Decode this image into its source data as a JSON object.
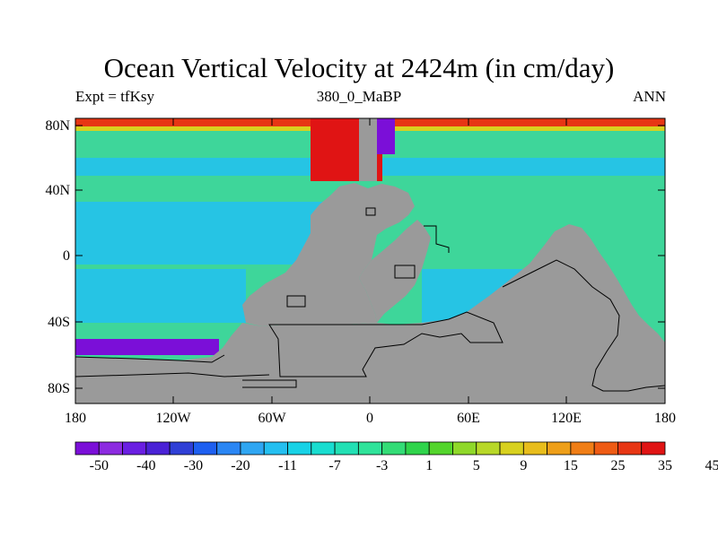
{
  "title": "Ocean Vertical Velocity at 2424m (in cm/day)",
  "subtitle_left": "Expt = tfKsy",
  "subtitle_center": "380_0_MaBP",
  "subtitle_right": "ANN",
  "lat_ticks": [
    "80N",
    "40N",
    "0",
    "40S",
    "80S"
  ],
  "lon_ticks": [
    "180",
    "120W",
    "60W",
    "0",
    "60E",
    "120E",
    "180"
  ],
  "colorbar": {
    "labels": [
      "-50",
      "-40",
      "-30",
      "-20",
      "-11",
      "-7",
      "-3",
      "1",
      "5",
      "9",
      "15",
      "25",
      "35",
      "45"
    ],
    "colors": [
      "#7b0fd8",
      "#8c2be0",
      "#6a1fe2",
      "#4a22d6",
      "#2f3fd6",
      "#1e5ff0",
      "#2a86f4",
      "#2fa6f2",
      "#24bff0",
      "#18d2e6",
      "#19ddd0",
      "#22e0b4",
      "#2fe39a",
      "#33dc76",
      "#2fd44b",
      "#53d52c",
      "#8fd829",
      "#b8d828",
      "#d8d11f",
      "#e8bd1c",
      "#ee9f19",
      "#f07e16",
      "#ee5b14",
      "#e73614",
      "#e01414"
    ]
  },
  "colors": {
    "land": "#9a9a9a",
    "ocean_base": "#3ed69a",
    "ocean_mid": "#26c4e4",
    "ocean_cold": "#1f9cf2"
  }
}
